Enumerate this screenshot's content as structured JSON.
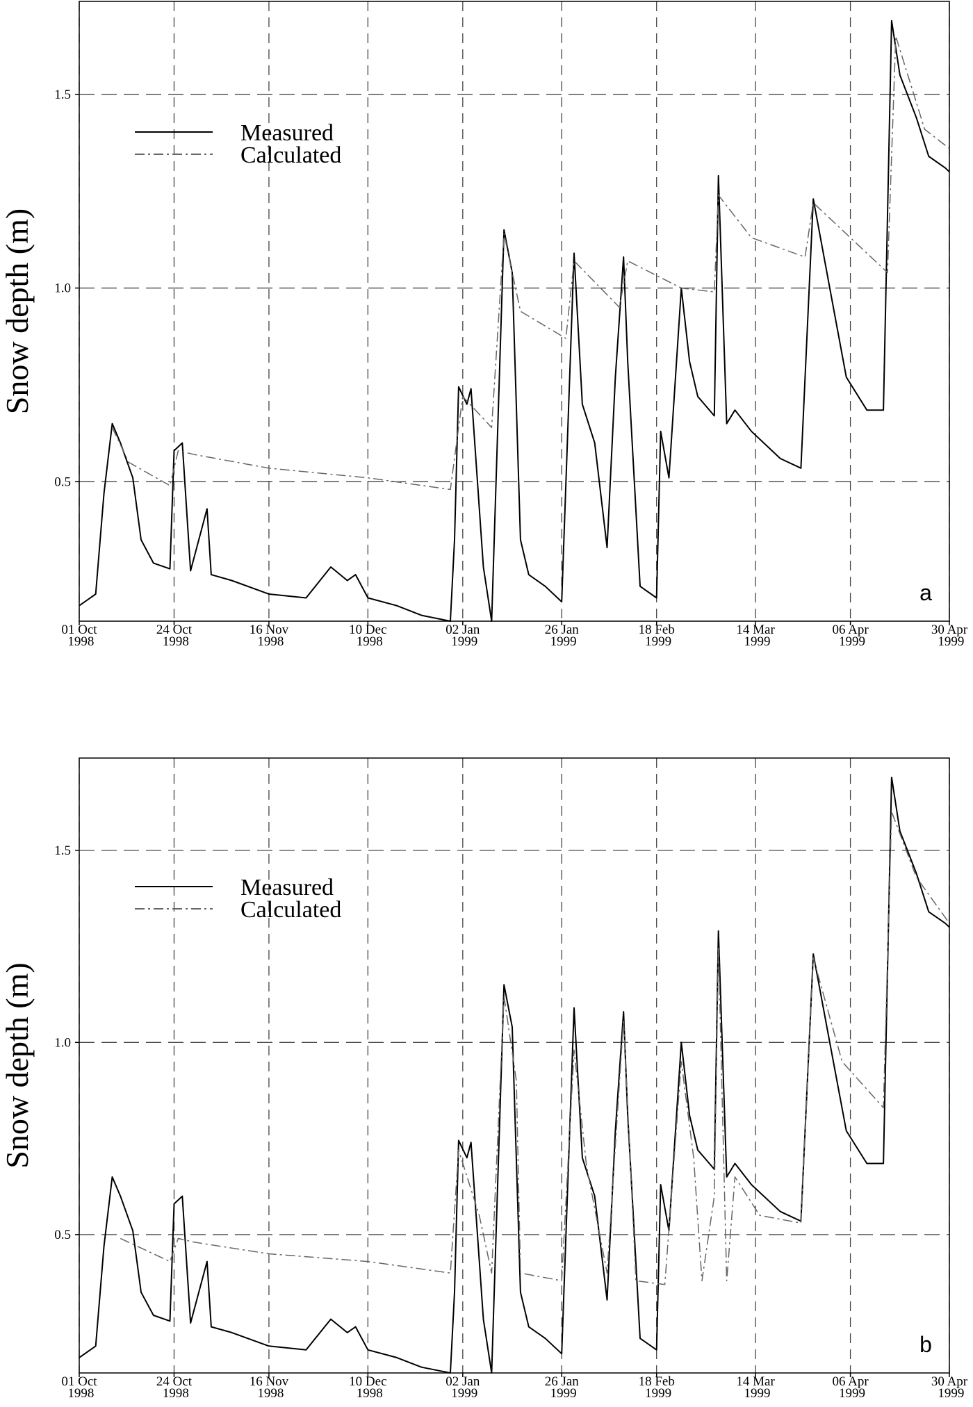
{
  "chart_data": [
    {
      "type": "line",
      "y_label": "Snow depth (m)",
      "annotation": "a",
      "xlim": [
        "1998-10-01",
        "1999-04-30"
      ],
      "ylim": [
        0.14,
        1.74
      ],
      "xticks": [
        {
          "value": "1998-10-01",
          "label": "01 Oct 1998"
        },
        {
          "value": "1998-10-24",
          "label": "24 Oct 1998"
        },
        {
          "value": "1998-11-16",
          "label": "16 Nov 1998"
        },
        {
          "value": "1998-12-10",
          "label": "10 Dec 1998"
        },
        {
          "value": "1999-01-02",
          "label": "02 Jan 1999"
        },
        {
          "value": "1999-01-26",
          "label": "26 Jan 1999"
        },
        {
          "value": "1999-02-18",
          "label": "18 Feb 1999"
        },
        {
          "value": "1999-03-14",
          "label": "14 Mar 1999"
        },
        {
          "value": "1999-04-06",
          "label": "06 Apr 1999"
        },
        {
          "value": "1999-04-30",
          "label": "30 Apr 1999"
        }
      ],
      "yticks": [
        0.5,
        {
          "value": 1,
          "label": "1.0"
        },
        1.5
      ],
      "grid": true,
      "legend": "upper left",
      "series": [
        {
          "name": "Measured",
          "color": "#000000",
          "dash": "solid",
          "x": [
            "1998-10-01",
            "1998-10-05",
            "1998-10-07",
            "1998-10-09",
            "1998-10-11",
            "1998-10-14",
            "1998-10-16",
            "1998-10-19",
            "1998-10-23",
            "1998-10-24",
            "1998-10-26",
            "1998-10-28",
            "1998-11-01",
            "1998-11-02",
            "1998-11-07",
            "1998-11-16",
            "1998-11-25",
            "1998-12-01",
            "1998-12-05",
            "1998-12-07",
            "1998-12-10",
            "1998-12-17",
            "1998-12-23",
            "1998-12-30",
            "1998-12-31",
            "1999-01-01",
            "1999-01-03",
            "1999-01-04",
            "1999-01-07",
            "1999-01-09",
            "1999-01-12",
            "1999-01-14",
            "1999-01-16",
            "1999-01-18",
            "1999-01-22",
            "1999-01-26",
            "1999-01-29",
            "1999-01-31",
            "1999-02-03",
            "1999-02-06",
            "1999-02-08",
            "1999-02-10",
            "1999-02-11",
            "1999-02-14",
            "1999-02-18",
            "1999-02-19",
            "1999-02-21",
            "1999-02-24",
            "1999-02-26",
            "1999-02-28",
            "1999-03-04",
            "1999-03-05",
            "1999-03-07",
            "1999-03-09",
            "1999-03-13",
            "1999-03-20",
            "1999-03-25",
            "1999-03-28",
            "1999-04-01",
            "1999-04-05",
            "1999-04-10",
            "1999-04-14",
            "1999-04-16",
            "1999-04-18",
            "1999-04-22",
            "1999-04-25",
            "1999-04-29",
            "1999-04-30"
          ],
          "values": [
            0.18,
            0.21,
            0.47,
            0.65,
            0.6,
            0.51,
            0.35,
            0.29,
            0.275,
            0.58,
            0.6,
            0.27,
            0.43,
            0.26,
            0.245,
            0.21,
            0.2,
            0.28,
            0.245,
            0.26,
            0.2,
            0.18,
            0.155,
            0.14,
            0.35,
            0.745,
            0.7,
            0.74,
            0.28,
            0.14,
            1.15,
            1.04,
            0.35,
            0.26,
            0.23,
            0.19,
            1.09,
            0.7,
            0.6,
            0.33,
            0.77,
            1.08,
            0.81,
            0.23,
            0.2,
            0.63,
            0.51,
            1.0,
            0.81,
            0.72,
            0.67,
            1.29,
            0.65,
            0.685,
            0.63,
            0.56,
            0.535,
            1.23,
            1.0,
            0.77,
            0.685,
            0.685,
            1.69,
            1.55,
            1.44,
            1.34,
            1.31,
            1.3
          ]
        },
        {
          "name": "Calculated",
          "color": "#666666",
          "dash": "dashdot",
          "x": [
            "1998-10-09",
            "1998-10-13",
            "1998-10-23",
            "1998-10-25",
            "1998-10-29",
            "1998-11-16",
            "1998-12-10",
            "1998-12-30",
            "1999-01-02",
            "1999-01-09",
            "1999-01-12",
            "1999-01-16",
            "1999-01-27",
            "1999-01-29",
            "1999-02-09",
            "1999-02-11",
            "1999-02-24",
            "1999-03-04",
            "1999-03-05",
            "1999-03-13",
            "1999-03-26",
            "1999-03-28",
            "1999-04-15",
            "1999-04-17",
            "1999-04-24",
            "1999-04-30"
          ],
          "values": [
            0.64,
            0.55,
            0.49,
            0.58,
            0.57,
            0.535,
            0.51,
            0.48,
            0.72,
            0.64,
            1.14,
            0.94,
            0.87,
            1.07,
            0.95,
            1.07,
            1.0,
            0.99,
            1.24,
            1.13,
            1.08,
            1.22,
            1.04,
            1.65,
            1.41,
            1.36
          ]
        }
      ]
    },
    {
      "type": "line",
      "y_label": "Snow depth (m)",
      "annotation": "b",
      "xlim": [
        "1998-10-01",
        "1999-04-30"
      ],
      "ylim": [
        0.14,
        1.74
      ],
      "xticks": [
        {
          "value": "1998-10-01",
          "label": "01 Oct 1998"
        },
        {
          "value": "1998-10-24",
          "label": "24 Oct 1998"
        },
        {
          "value": "1998-11-16",
          "label": "16 Nov 1998"
        },
        {
          "value": "1998-12-10",
          "label": "10 Dec 1998"
        },
        {
          "value": "1999-01-02",
          "label": "02 Jan 1999"
        },
        {
          "value": "1999-01-26",
          "label": "26 Jan 1999"
        },
        {
          "value": "1999-02-18",
          "label": "18 Feb 1999"
        },
        {
          "value": "1999-03-14",
          "label": "14 Mar 1999"
        },
        {
          "value": "1999-04-06",
          "label": "06 Apr 1999"
        },
        {
          "value": "1999-04-30",
          "label": "30 Apr 1999"
        }
      ],
      "yticks": [
        0.5,
        {
          "value": 1,
          "label": "1.0"
        },
        1.5
      ],
      "grid": true,
      "legend": "upper left",
      "series": [
        {
          "name": "Measured",
          "color": "#000000",
          "dash": "solid",
          "x": [
            "1998-10-01",
            "1998-10-05",
            "1998-10-07",
            "1998-10-09",
            "1998-10-11",
            "1998-10-14",
            "1998-10-16",
            "1998-10-19",
            "1998-10-23",
            "1998-10-24",
            "1998-10-26",
            "1998-10-28",
            "1998-11-01",
            "1998-11-02",
            "1998-11-07",
            "1998-11-16",
            "1998-11-25",
            "1998-12-01",
            "1998-12-05",
            "1998-12-07",
            "1998-12-10",
            "1998-12-17",
            "1998-12-23",
            "1998-12-30",
            "1998-12-31",
            "1999-01-01",
            "1999-01-03",
            "1999-01-04",
            "1999-01-07",
            "1999-01-09",
            "1999-01-12",
            "1999-01-14",
            "1999-01-16",
            "1999-01-18",
            "1999-01-22",
            "1999-01-26",
            "1999-01-29",
            "1999-01-31",
            "1999-02-03",
            "1999-02-06",
            "1999-02-08",
            "1999-02-10",
            "1999-02-11",
            "1999-02-14",
            "1999-02-18",
            "1999-02-19",
            "1999-02-21",
            "1999-02-24",
            "1999-02-26",
            "1999-02-28",
            "1999-03-04",
            "1999-03-05",
            "1999-03-07",
            "1999-03-09",
            "1999-03-13",
            "1999-03-20",
            "1999-03-25",
            "1999-03-28",
            "1999-04-01",
            "1999-04-05",
            "1999-04-10",
            "1999-04-14",
            "1999-04-16",
            "1999-04-18",
            "1999-04-22",
            "1999-04-25",
            "1999-04-29",
            "1999-04-30"
          ],
          "values": [
            0.18,
            0.21,
            0.47,
            0.65,
            0.6,
            0.51,
            0.35,
            0.29,
            0.275,
            0.58,
            0.6,
            0.27,
            0.43,
            0.26,
            0.245,
            0.21,
            0.2,
            0.28,
            0.245,
            0.26,
            0.2,
            0.18,
            0.155,
            0.14,
            0.35,
            0.745,
            0.7,
            0.74,
            0.28,
            0.14,
            1.15,
            1.04,
            0.35,
            0.26,
            0.23,
            0.19,
            1.09,
            0.7,
            0.6,
            0.33,
            0.77,
            1.08,
            0.81,
            0.23,
            0.2,
            0.63,
            0.51,
            1.0,
            0.81,
            0.72,
            0.67,
            1.29,
            0.65,
            0.685,
            0.63,
            0.56,
            0.535,
            1.23,
            1.0,
            0.77,
            0.685,
            0.685,
            1.69,
            1.55,
            1.44,
            1.34,
            1.31,
            1.3
          ]
        },
        {
          "name": "Calculated",
          "color": "#666666",
          "dash": "dashdot",
          "x": [
            "1998-10-11",
            "1998-10-23",
            "1998-10-25",
            "1998-10-29",
            "1998-11-16",
            "1998-12-10",
            "1998-12-30",
            "1999-01-01",
            "1999-01-06",
            "1999-01-09",
            "1999-01-12",
            "1999-01-15",
            "1999-01-16",
            "1999-01-26",
            "1999-01-29",
            "1999-02-01",
            "1999-02-06",
            "1999-02-10",
            "1999-02-13",
            "1999-02-20",
            "1999-02-24",
            "1999-02-27",
            "1999-03-01",
            "1999-03-04",
            "1999-03-05",
            "1999-03-07",
            "1999-03-09",
            "1999-03-15",
            "1999-03-25",
            "1999-03-28",
            "1999-04-04",
            "1999-04-14",
            "1999-04-16",
            "1999-04-22",
            "1999-04-30"
          ],
          "values": [
            0.49,
            0.43,
            0.49,
            0.48,
            0.45,
            0.43,
            0.4,
            0.72,
            0.55,
            0.4,
            1.12,
            0.9,
            0.4,
            0.38,
            0.98,
            0.68,
            0.4,
            1.06,
            0.38,
            0.37,
            0.95,
            0.7,
            0.38,
            0.6,
            1.25,
            0.38,
            0.65,
            0.55,
            0.53,
            1.22,
            0.95,
            0.83,
            1.6,
            1.43,
            1.31
          ]
        }
      ]
    }
  ]
}
